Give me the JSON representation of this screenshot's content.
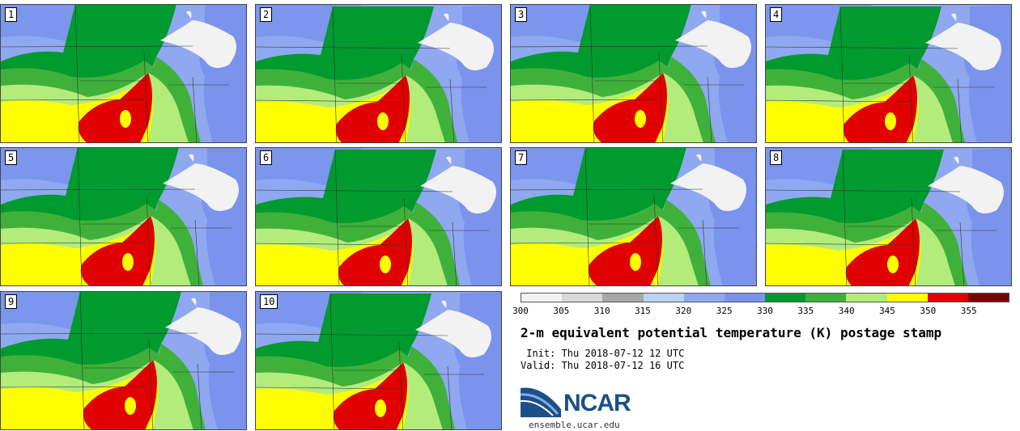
{
  "panels": [
    {
      "label": "1"
    },
    {
      "label": "2"
    },
    {
      "label": "3"
    },
    {
      "label": "4"
    },
    {
      "label": "5"
    },
    {
      "label": "6"
    },
    {
      "label": "7"
    },
    {
      "label": "8"
    },
    {
      "label": "9"
    },
    {
      "label": "10"
    }
  ],
  "colorbar": {
    "ticks": [
      "300",
      "305",
      "310",
      "315",
      "320",
      "325",
      "330",
      "335",
      "340",
      "345",
      "350",
      "355"
    ],
    "colors": [
      "#f2f2f2",
      "#d9d9d9",
      "#a6a6a6",
      "#bcd2f7",
      "#8fa8f0",
      "#7a93ec",
      "#009a2e",
      "#3fb13a",
      "#b3ec7a",
      "#ffff00",
      "#e00000",
      "#7a0000"
    ]
  },
  "title": "2-m equivalent potential temperature (K) postage stamp",
  "init": " Init: Thu 2018-07-12 12 UTC",
  "valid": "Valid: Thu 2018-07-12 16 UTC",
  "logo": {
    "text": "NCAR",
    "url": "ensemble.ucar.edu"
  }
}
